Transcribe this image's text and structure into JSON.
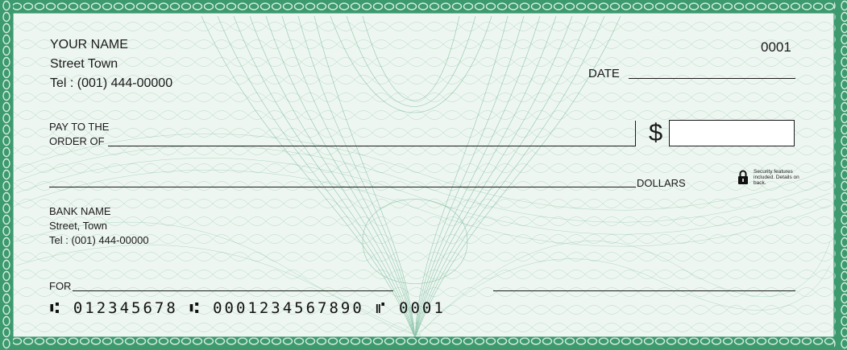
{
  "check": {
    "account_holder": {
      "name": "YOUR NAME",
      "street": "Street Town",
      "tel": "Tel : (001) 444-00000"
    },
    "check_number": "0001",
    "date_label": "DATE",
    "pay_to_line1": "PAY TO THE",
    "pay_to_line2": "ORDER OF",
    "currency_symbol": "$",
    "dollars_label": "DOLLARS",
    "security_note": "Security features included. Details on back.",
    "bank": {
      "name": "BANK NAME",
      "street": "Street, Town",
      "tel": "Tel : (001) 444-00000"
    },
    "for_label": "FOR",
    "micr_line": "⑆ 012345678 ⑆ 0001234567890 ⑈ 0001"
  },
  "colors": {
    "border_green": "#3d9a6e",
    "pattern_green": "#5fae88",
    "background": "#eef6f1"
  },
  "icons": {
    "security": "padlock-icon"
  }
}
